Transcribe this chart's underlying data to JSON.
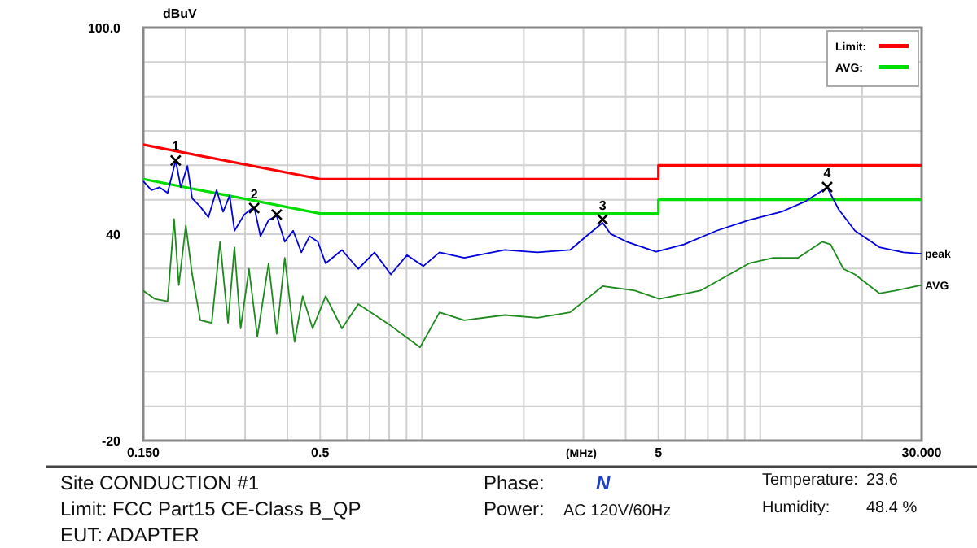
{
  "chart_data": {
    "type": "line",
    "xlabel": "(MHz)",
    "ylabel": "dBuV",
    "log": "x",
    "grid": true,
    "legend": "top right",
    "xlim": [
      0.15,
      30
    ],
    "ylim": [
      -20,
      100
    ],
    "xticks": [
      {
        "value": 0.15,
        "label": "0.150"
      },
      {
        "value": 0.2,
        "label": null
      },
      {
        "value": 0.3,
        "label": null
      },
      {
        "value": 0.4,
        "label": null
      },
      0.5,
      {
        "value": 0.6,
        "label": null
      },
      {
        "value": 0.7,
        "label": null
      },
      {
        "value": 0.8,
        "label": null
      },
      {
        "value": 0.9,
        "label": null
      },
      {
        "value": 1,
        "label": null
      },
      {
        "value": 2,
        "label": null
      },
      {
        "value": 3,
        "label": null
      },
      {
        "value": 4,
        "label": null
      },
      5,
      {
        "value": 6,
        "label": null
      },
      {
        "value": 7,
        "label": null
      },
      {
        "value": 8,
        "label": null
      },
      {
        "value": 9,
        "label": null
      },
      {
        "value": 10,
        "label": null
      },
      {
        "value": 20,
        "label": null
      },
      {
        "value": 30,
        "label": "30.000"
      }
    ],
    "yticks": [
      -20,
      {
        "value": -10,
        "label": null
      },
      {
        "value": 0,
        "label": null
      },
      {
        "value": 10,
        "label": null
      },
      {
        "value": 20,
        "label": null
      },
      {
        "value": 30,
        "label": null
      },
      40,
      {
        "value": 50,
        "label": null
      },
      {
        "value": 60,
        "label": null
      },
      {
        "value": 70,
        "label": null
      },
      {
        "value": 80,
        "label": null
      },
      {
        "value": 90,
        "label": null
      },
      {
        "value": 100,
        "label": "100.0"
      }
    ],
    "series": [
      {
        "name": "Limit:",
        "color": "#ff0000",
        "x": [
          0.15,
          0.5,
          5,
          5,
          30
        ],
        "values": [
          66,
          56,
          56,
          60,
          60
        ]
      },
      {
        "name": "AVG:",
        "color": "#00dd00",
        "x": [
          0.15,
          0.5,
          5,
          5,
          30
        ],
        "values": [
          56,
          46,
          46,
          50,
          50
        ]
      },
      {
        "color": "#0000dd",
        "x": [
          0.15,
          0.1585,
          0.1676,
          0.177,
          0.187,
          0.1936,
          0.2025,
          0.2092,
          0.2211,
          0.2336,
          0.247,
          0.2583,
          0.27,
          0.2792,
          0.2983,
          0.319,
          0.333,
          0.352,
          0.372,
          0.393,
          0.416,
          0.44,
          0.465,
          0.492,
          0.519,
          0.58,
          0.648,
          0.724,
          0.809,
          0.903,
          1.009,
          1.127,
          1.333,
          1.758,
          2.194,
          2.74,
          3.06,
          3.42,
          3.61,
          4.03,
          4.92,
          5.95,
          7.43,
          9.27,
          11.56,
          13.65,
          15.77,
          17.05,
          19.05,
          22.5,
          26.5,
          30
        ],
        "values": [
          55.4,
          52.8,
          53.6,
          52,
          61.4,
          53.6,
          59.8,
          50.4,
          48,
          44.9,
          52.8,
          46.5,
          51.2,
          41,
          45.7,
          48,
          39.4,
          44.1,
          45.3,
          37.8,
          41,
          34.7,
          39.4,
          37.8,
          31.5,
          35.4,
          29.9,
          34.7,
          28.3,
          33.9,
          30.7,
          34.7,
          33.1,
          35.4,
          34.7,
          35.4,
          39.4,
          43.3,
          40.1,
          37.8,
          34.9,
          37,
          41,
          44.1,
          46.5,
          49.6,
          53.6,
          47.2,
          41,
          36.2,
          34.7,
          34.3
        ]
      },
      {
        "color": "#1e8a1e",
        "x": [
          0.15,
          0.162,
          0.177,
          0.185,
          0.191,
          0.2004,
          0.2092,
          0.2211,
          0.239,
          0.253,
          0.267,
          0.279,
          0.291,
          0.308,
          0.326,
          0.352,
          0.372,
          0.393,
          0.42,
          0.444,
          0.475,
          0.519,
          0.58,
          0.648,
          0.809,
          0.987,
          1.127,
          1.333,
          1.758,
          2.194,
          2.74,
          3.42,
          4.26,
          5.03,
          6.65,
          9.27,
          10.93,
          12.92,
          15.25,
          16.14,
          17.62,
          19.05,
          22.5,
          25.1,
          30
        ],
        "values": [
          23.6,
          21.2,
          20.5,
          44.4,
          25.2,
          42.5,
          28.3,
          15,
          14.2,
          37.8,
          14.2,
          36.2,
          12.6,
          29.9,
          10.2,
          31.5,
          11,
          33.1,
          8.7,
          22,
          12.6,
          22,
          12.6,
          19.7,
          13.4,
          7.1,
          17.3,
          15,
          16.5,
          15.7,
          17.3,
          24.9,
          23.6,
          21.2,
          23.6,
          31.5,
          33.1,
          33.1,
          37.8,
          37,
          29.9,
          28.3,
          22.8,
          23.6,
          25.2
        ]
      },
      {
        "type": "scatter",
        "marker": "cross",
        "color": "#000000",
        "x": [
          0.187,
          0.319,
          0.372,
          3.42,
          15.77
        ],
        "values": [
          61.4,
          47.6,
          45.7,
          44.3,
          53.7
        ]
      }
    ],
    "annotations": [
      {
        "text": "1",
        "x": 0.187,
        "y": 61.4
      },
      {
        "text": "2",
        "x": 0.319,
        "y": 47.6
      },
      {
        "text": "3",
        "x": 3.42,
        "y": 44.3
      },
      {
        "text": "4",
        "x": 15.77,
        "y": 53.7
      },
      {
        "text": "peak",
        "x": 30,
        "y": 34.3
      },
      {
        "text": "AVG",
        "x": 30,
        "y": 25.2
      },
      "Site  CONDUCTION #1",
      "Limit: FCC Part15 CE-Class B_QP",
      "EUT: ADAPTER",
      "Phase:",
      "N",
      "Power:",
      "AC 120V/60Hz",
      "Temperature:",
      "23.6",
      "Humidity:",
      "48.4 %"
    ]
  }
}
